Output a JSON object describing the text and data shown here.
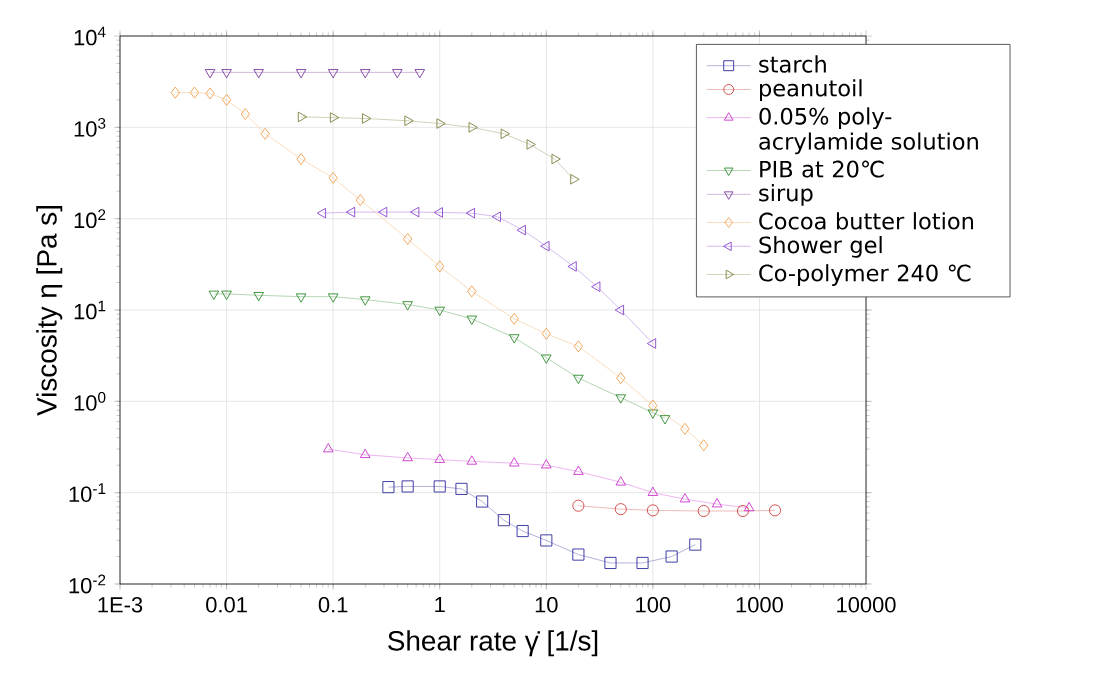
{
  "chart_data": {
    "type": "line",
    "xlabel": "Shear rate γ̇ [1/s]",
    "ylabel": "Viscosity η [Pa s]",
    "log": "xy",
    "grid": true,
    "legend": "top right",
    "xlim": [
      0.001,
      10000
    ],
    "ylim": [
      0.01,
      10000
    ],
    "xticks": [
      {
        "value": 0.001,
        "label": "1E-3"
      },
      0.01,
      0.1,
      1,
      10,
      100,
      1000,
      10000
    ],
    "yticks": [
      {
        "value": 0.01,
        "label": "10$^{-2}$"
      },
      {
        "value": 0.1,
        "label": "10$^{-1}$"
      },
      {
        "value": 1,
        "label": "10$^{0}$"
      },
      {
        "value": 10,
        "label": "10$^{1}$"
      },
      {
        "value": 100,
        "label": "10$^{2}$"
      },
      {
        "value": 1000,
        "label": "10$^{3}$"
      },
      {
        "value": 10000,
        "label": "10$^{4}$"
      }
    ],
    "series": [
      {
        "name": "starch",
        "color": "#2a2a9a",
        "marker": "square",
        "x": [
          0.33,
          0.5,
          1,
          1.6,
          2.5,
          4,
          6,
          10,
          20,
          40,
          80,
          150,
          250
        ],
        "values": [
          0.115,
          0.117,
          0.117,
          0.11,
          0.08,
          0.05,
          0.038,
          0.03,
          0.021,
          0.017,
          0.017,
          0.02,
          0.027
        ]
      },
      {
        "name": "peanutoil",
        "color": "#d04040",
        "marker": "circle",
        "x": [
          20,
          50,
          100,
          300,
          700,
          1400
        ],
        "values": [
          0.072,
          0.066,
          0.064,
          0.063,
          0.063,
          0.064
        ]
      },
      {
        "name": "0.05% poly-acrylamide solution",
        "color": "#cc33cc",
        "marker": "triangle",
        "x": [
          0.09,
          0.2,
          0.5,
          1,
          2,
          5,
          10,
          20,
          50,
          100,
          200,
          400,
          800
        ],
        "values": [
          0.3,
          0.26,
          0.24,
          0.23,
          0.22,
          0.21,
          0.2,
          0.17,
          0.13,
          0.1,
          0.085,
          0.075,
          0.068
        ]
      },
      {
        "name": "PIB at 20℃",
        "color": "#2e8b2e",
        "marker": "triangle-down",
        "x": [
          0.0076,
          0.01,
          0.02,
          0.05,
          0.1,
          0.2,
          0.5,
          1,
          2,
          5,
          10,
          20,
          50,
          100,
          130
        ],
        "values": [
          15,
          15,
          14.5,
          14,
          14,
          13,
          11.5,
          10,
          8,
          5,
          3,
          1.8,
          1.1,
          0.75,
          0.65
        ]
      },
      {
        "name": "sirup",
        "color": "#7a3a9a",
        "marker": "triangle-down",
        "x": [
          0.007,
          0.01,
          0.02,
          0.05,
          0.1,
          0.2,
          0.4,
          0.65
        ],
        "values": [
          4000,
          4000,
          4000,
          4000,
          4000,
          4000,
          4000,
          4000
        ]
      },
      {
        "name": "Cocoa butter lotion",
        "color": "#f0a050",
        "marker": "diamond",
        "x": [
          0.0033,
          0.005,
          0.007,
          0.01,
          0.015,
          0.023,
          0.05,
          0.1,
          0.18,
          0.5,
          1,
          2,
          5,
          10,
          20,
          50,
          100,
          200,
          300
        ],
        "values": [
          2400,
          2400,
          2350,
          2000,
          1400,
          850,
          450,
          280,
          160,
          60,
          30,
          16,
          8,
          5.5,
          4,
          1.8,
          0.9,
          0.5,
          0.33
        ]
      },
      {
        "name": "Shower gel",
        "color": "#8844cc",
        "marker": "triangle-left",
        "x": [
          0.08,
          0.15,
          0.3,
          0.6,
          1,
          2,
          3.5,
          6,
          10,
          18,
          30,
          50,
          100
        ],
        "values": [
          115,
          118,
          118,
          118,
          117,
          115,
          105,
          75,
          50,
          30,
          18,
          10,
          4.3
        ]
      },
      {
        "name": "Co-polymer 240 ℃",
        "color": "#808040",
        "marker": "triangle-right",
        "x": [
          0.05,
          0.1,
          0.2,
          0.5,
          1,
          2,
          4,
          7,
          12,
          18
        ],
        "values": [
          1300,
          1280,
          1250,
          1180,
          1100,
          1000,
          850,
          650,
          450,
          270
        ]
      }
    ]
  }
}
